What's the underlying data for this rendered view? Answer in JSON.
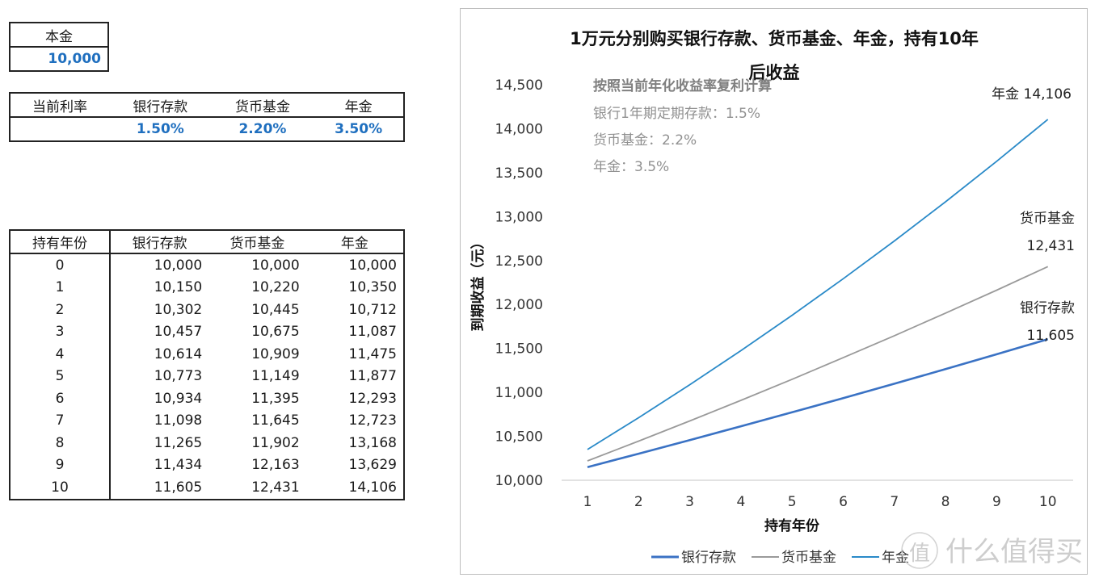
{
  "principal": {
    "label": "本金",
    "value": "10,000"
  },
  "rates": {
    "label": "当前利率",
    "headers": [
      "银行存款",
      "货币基金",
      "年金"
    ],
    "values": [
      "1.50%",
      "2.20%",
      "3.50%"
    ]
  },
  "yearly_table": {
    "headers": [
      "持有年份",
      "银行存款",
      "货币基金",
      "年金"
    ],
    "rows": [
      [
        "0",
        "10,000",
        "10,000",
        "10,000"
      ],
      [
        "1",
        "10,150",
        "10,220",
        "10,350"
      ],
      [
        "2",
        "10,302",
        "10,445",
        "10,712"
      ],
      [
        "3",
        "10,457",
        "10,675",
        "11,087"
      ],
      [
        "4",
        "10,614",
        "10,909",
        "11,475"
      ],
      [
        "5",
        "10,773",
        "11,149",
        "11,877"
      ],
      [
        "6",
        "10,934",
        "11,395",
        "12,293"
      ],
      [
        "7",
        "11,098",
        "11,645",
        "12,723"
      ],
      [
        "8",
        "11,265",
        "11,902",
        "13,168"
      ],
      [
        "9",
        "11,434",
        "12,163",
        "13,629"
      ],
      [
        "10",
        "11,605",
        "12,431",
        "14,106"
      ]
    ]
  },
  "chart_notes": {
    "heading": "按照当前年化收益率复利计算",
    "lines": [
      "银行1年期定期存款：1.5%",
      "货币基金：2.2%",
      "年金：3.5%"
    ]
  },
  "end_labels": {
    "annuity": "年金 14,106",
    "fund_name": "货币基金",
    "fund_value": "12,431",
    "bank_name": "银行存款",
    "bank_value": "11,605"
  },
  "watermark": {
    "glyph": "值",
    "text": "什么值得买"
  },
  "colors": {
    "bank": "#3a72c4",
    "fund": "#9a9a9a",
    "annuity": "#2a8ac8",
    "value_blue": "#1f6fbf",
    "grid": "#d9d9d9"
  },
  "chart_data": {
    "type": "line",
    "title": "1万元分别购买银行存款、货币基金、年金，持有10年后收益",
    "title_lines": [
      "1万元分别购买银行存款、货币基金、年金，持有10年",
      "后收益"
    ],
    "xlabel": "持有年份",
    "ylabel": "到期收益（元）",
    "x": [
      1,
      2,
      3,
      4,
      5,
      6,
      7,
      8,
      9,
      10
    ],
    "x_tick_labels": [
      "1",
      "2",
      "3",
      "4",
      "5",
      "6",
      "7",
      "8",
      "9",
      "10"
    ],
    "y_tick_labels": [
      "10,000",
      "10,500",
      "11,000",
      "11,500",
      "12,000",
      "12,500",
      "13,000",
      "13,500",
      "14,000",
      "14,500"
    ],
    "ylim": [
      10000,
      14500
    ],
    "grid": false,
    "legend_position": "bottom",
    "series": [
      {
        "name": "银行存款",
        "color": "#3a72c4",
        "values": [
          10150,
          10302,
          10457,
          10614,
          10773,
          10934,
          11098,
          11265,
          11434,
          11605
        ]
      },
      {
        "name": "货币基金",
        "color": "#9a9a9a",
        "values": [
          10220,
          10445,
          10675,
          10909,
          11149,
          11395,
          11645,
          11902,
          12163,
          12431
        ]
      },
      {
        "name": "年金",
        "color": "#2a8ac8",
        "values": [
          10350,
          10712,
          11087,
          11475,
          11877,
          12293,
          12723,
          13168,
          13629,
          14106
        ]
      }
    ]
  }
}
